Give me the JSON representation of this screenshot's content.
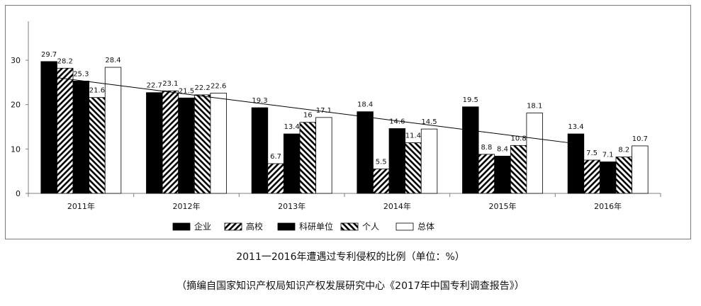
{
  "chart_data": {
    "type": "bar",
    "categories": [
      "2011年",
      "2012年",
      "2013年",
      "2014年",
      "2015年",
      "2016年"
    ],
    "series": [
      {
        "name": "企业",
        "values": [
          29.7,
          22.7,
          19.3,
          18.4,
          19.5,
          13.4
        ],
        "pattern": "solid"
      },
      {
        "name": "高校",
        "values": [
          28.2,
          23.1,
          6.7,
          5.5,
          8.8,
          7.5
        ],
        "pattern": "hatch-forward"
      },
      {
        "name": "科研单位",
        "values": [
          25.3,
          21.5,
          13.4,
          14.6,
          8.4,
          7.1
        ],
        "pattern": "solid"
      },
      {
        "name": "个人",
        "values": [
          21.6,
          22.2,
          16,
          11.4,
          10.8,
          8.2
        ],
        "pattern": "hatch-backward"
      },
      {
        "name": "总体",
        "values": [
          28.4,
          22.6,
          17.1,
          14.5,
          18.1,
          10.7
        ],
        "pattern": "empty"
      }
    ],
    "data_labels": [
      [
        "29.7",
        "28.2",
        "25.3",
        "21.6",
        "28.4"
      ],
      [
        "22.7",
        "23.1",
        "21.5",
        "22.2",
        "22.6"
      ],
      [
        "19.3",
        "6.7",
        "13.4",
        "16",
        "17.1"
      ],
      [
        "18.4",
        "5.5",
        "14.6",
        "11.4",
        "14.5"
      ],
      [
        "19.5",
        "8.8",
        "8.4",
        "10.8",
        "18.1"
      ],
      [
        "13.4",
        "7.5",
        "7.1",
        "8.2",
        "10.7"
      ]
    ],
    "trendline": {
      "series": "企业",
      "start": 26.3,
      "end": 11.2
    },
    "yticks": [
      "0",
      "10",
      "20",
      "30"
    ],
    "ylim": [
      0,
      37
    ],
    "grid": false,
    "legend_position": "bottom",
    "title": "2011一2016年遭遇过专利侵权的比例（单位：%）",
    "source": "（摘编自国家知识产权局知识产权发展研究中心《2017年中国专利调查报告》）",
    "colors": {
      "bar_fill": "#000000",
      "empty_fill": "#ffffff",
      "axis": "#7f7f7f",
      "border": "#7a7a7a"
    }
  }
}
